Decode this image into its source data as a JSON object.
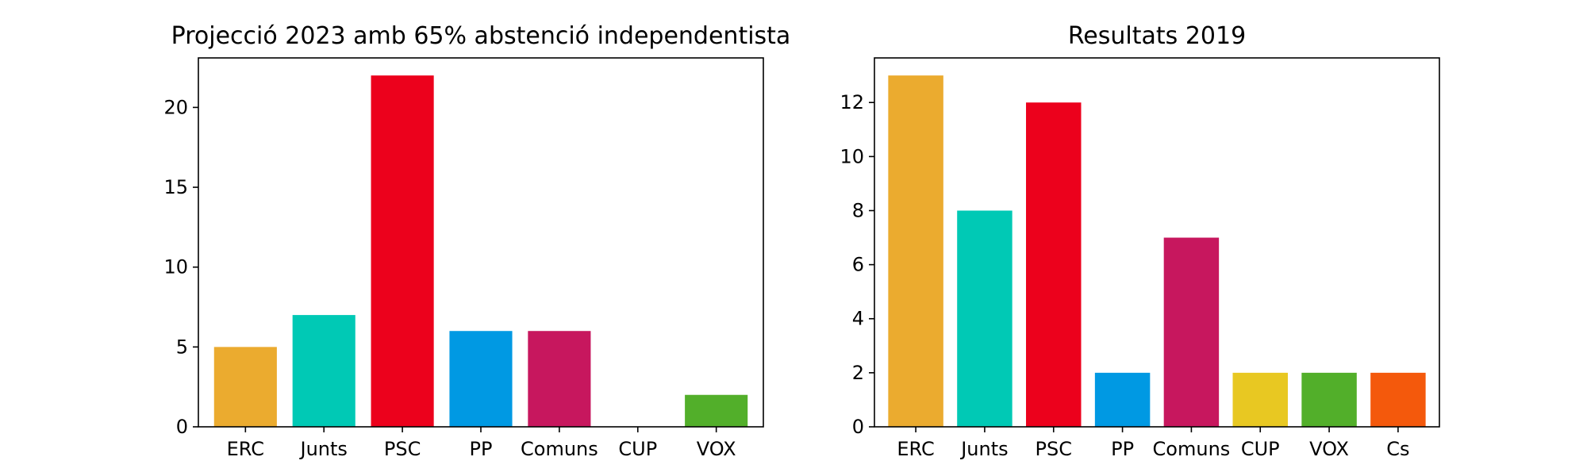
{
  "chart_data": [
    {
      "type": "bar",
      "title": "Projecció 2023 amb 65% abstenció independentista",
      "xlabel": "",
      "ylabel": "",
      "categories": [
        "ERC",
        "Junts",
        "PSC",
        "PP",
        "Comuns",
        "CUP",
        "VOX"
      ],
      "values": [
        5,
        7,
        22,
        6,
        6,
        0,
        2
      ],
      "colors": [
        "#EBAB2F",
        "#00C9B5",
        "#EC011C",
        "#0099E3",
        "#C7175E",
        "#E8C822",
        "#52AF2A"
      ],
      "ylim": [
        0,
        23.1
      ],
      "yticks": [
        0,
        5,
        10,
        15,
        20
      ],
      "grid": false,
      "legend": "none"
    },
    {
      "type": "bar",
      "title": "Resultats 2019",
      "xlabel": "",
      "ylabel": "",
      "categories": [
        "ERC",
        "Junts",
        "PSC",
        "PP",
        "Comuns",
        "CUP",
        "VOX",
        "Cs"
      ],
      "values": [
        13,
        8,
        12,
        2,
        7,
        2,
        2,
        2
      ],
      "colors": [
        "#EBAB2F",
        "#00C9B5",
        "#EC011C",
        "#0099E3",
        "#C7175E",
        "#E8C822",
        "#52AF2A",
        "#F4590C"
      ],
      "ylim": [
        0,
        13.65
      ],
      "yticks": [
        0,
        2,
        4,
        6,
        8,
        10,
        12
      ],
      "grid": false,
      "legend": "none"
    }
  ]
}
